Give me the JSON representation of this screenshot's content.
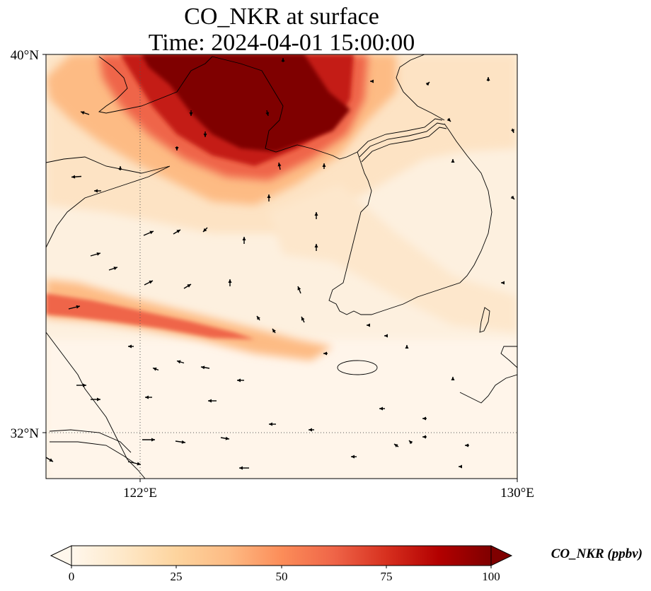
{
  "title": {
    "line1": "CO_NKR at surface",
    "line2": "Time: 2024-04-01 15:00:00"
  },
  "map": {
    "lat_ticks": [
      "40°N",
      "32°N"
    ],
    "lon_ticks": [
      "122°E",
      "130°E"
    ],
    "extent": {
      "lon": [
        120,
        130
      ],
      "lat": [
        31,
        40
      ]
    },
    "gridlines": "dotted at 122°E and 32°N"
  },
  "colorbar": {
    "title": "CO_NKR (ppbv)",
    "ticks": [
      "0",
      "25",
      "50",
      "75",
      "100"
    ],
    "range": [
      0,
      100
    ],
    "colormap": "OrRd",
    "extend": "both",
    "colors": [
      "#fff7ec",
      "#fee8c8",
      "#fdd49e",
      "#fdbb84",
      "#fc8d59",
      "#ef6548",
      "#d7301f",
      "#b30000",
      "#7f0000"
    ]
  },
  "chart_data": {
    "type": "heatmap",
    "variable": "CO_NKR",
    "units": "ppbv",
    "description_values": [
      {
        "region": "northern Yellow Sea / Bohai (near 39–40°N, 121–126°E)",
        "value_ppbv": 100
      },
      {
        "region": "southwest-northeast band near 34°N, 120–126°E",
        "value_ppbv": 50
      },
      {
        "region": "central Yellow Sea",
        "value_ppbv": 15
      },
      {
        "region": "south (East China Sea)",
        "value_ppbv": 3
      }
    ]
  }
}
